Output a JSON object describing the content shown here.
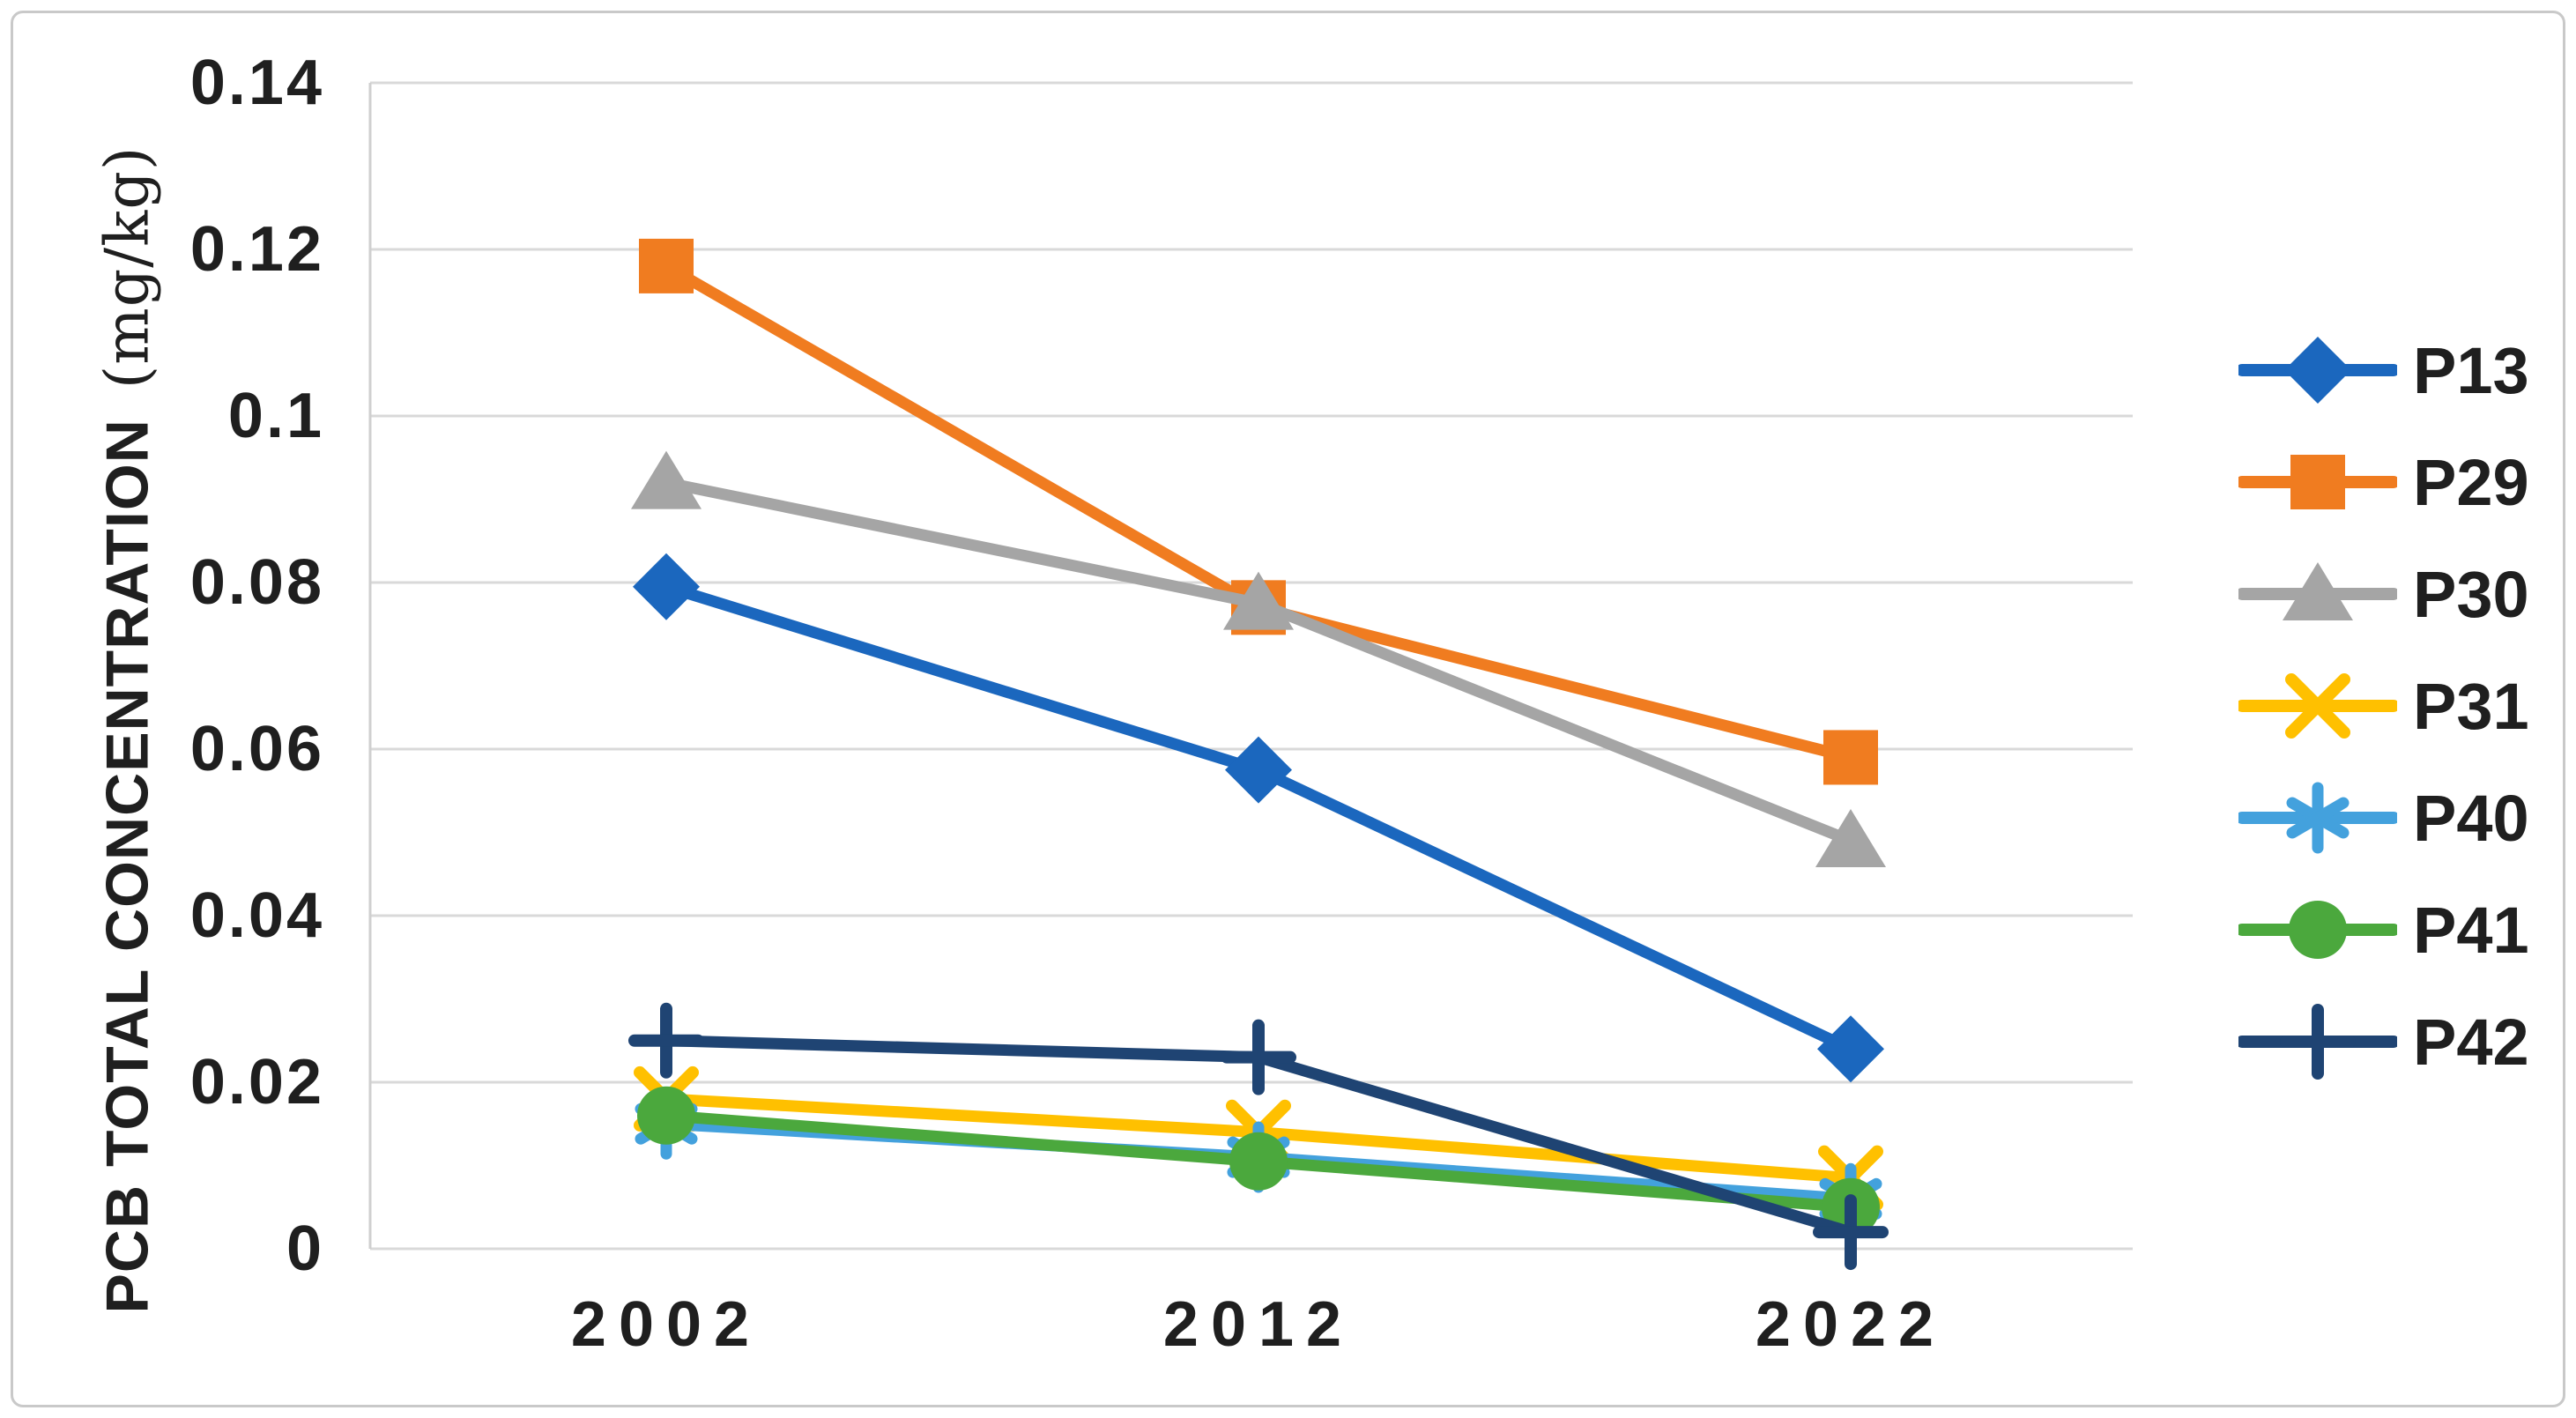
{
  "chart_data": {
    "type": "line",
    "title": "",
    "ylabel_main": "PCB TOTAL CONCENTRATION",
    "ylabel_unit": "(mg/kg)",
    "xlabel": "",
    "categories": [
      "2002",
      "2012",
      "2022"
    ],
    "y_ticks": [
      "0.14",
      "0.12",
      "0.1",
      "0.08",
      "0.06",
      "0.04",
      "0.02",
      "0"
    ],
    "ylim": [
      0,
      0.14
    ],
    "y_tick_step": 0.02,
    "grid": "horizontal",
    "legend_position": "right",
    "series": [
      {
        "name": "P13",
        "color": "#1B67BE",
        "marker": "diamond",
        "values": [
          0.0795,
          0.0575,
          0.024
        ]
      },
      {
        "name": "P29",
        "color": "#F07C20",
        "marker": "square",
        "values": [
          0.118,
          0.077,
          0.059
        ]
      },
      {
        "name": "P30",
        "color": "#A5A5A5",
        "marker": "triangle",
        "values": [
          0.092,
          0.0775,
          0.049
        ]
      },
      {
        "name": "P31",
        "color": "#FFC000",
        "marker": "x",
        "values": [
          0.018,
          0.014,
          0.0085
        ]
      },
      {
        "name": "P40",
        "color": "#43A1DD",
        "marker": "asterisk",
        "values": [
          0.015,
          0.011,
          0.006
        ]
      },
      {
        "name": "P41",
        "color": "#4BA83D",
        "marker": "circle",
        "values": [
          0.016,
          0.0105,
          0.005
        ]
      },
      {
        "name": "P42",
        "color": "#1F4473",
        "marker": "plus",
        "values": [
          0.025,
          0.023,
          0.002
        ]
      }
    ]
  },
  "colors": {
    "gridline": "#D9D9D9",
    "axis_line": "#CFCFCF",
    "text": "#1F1F1F",
    "border": "#C9C9C9",
    "background": "#FFFFFF"
  }
}
